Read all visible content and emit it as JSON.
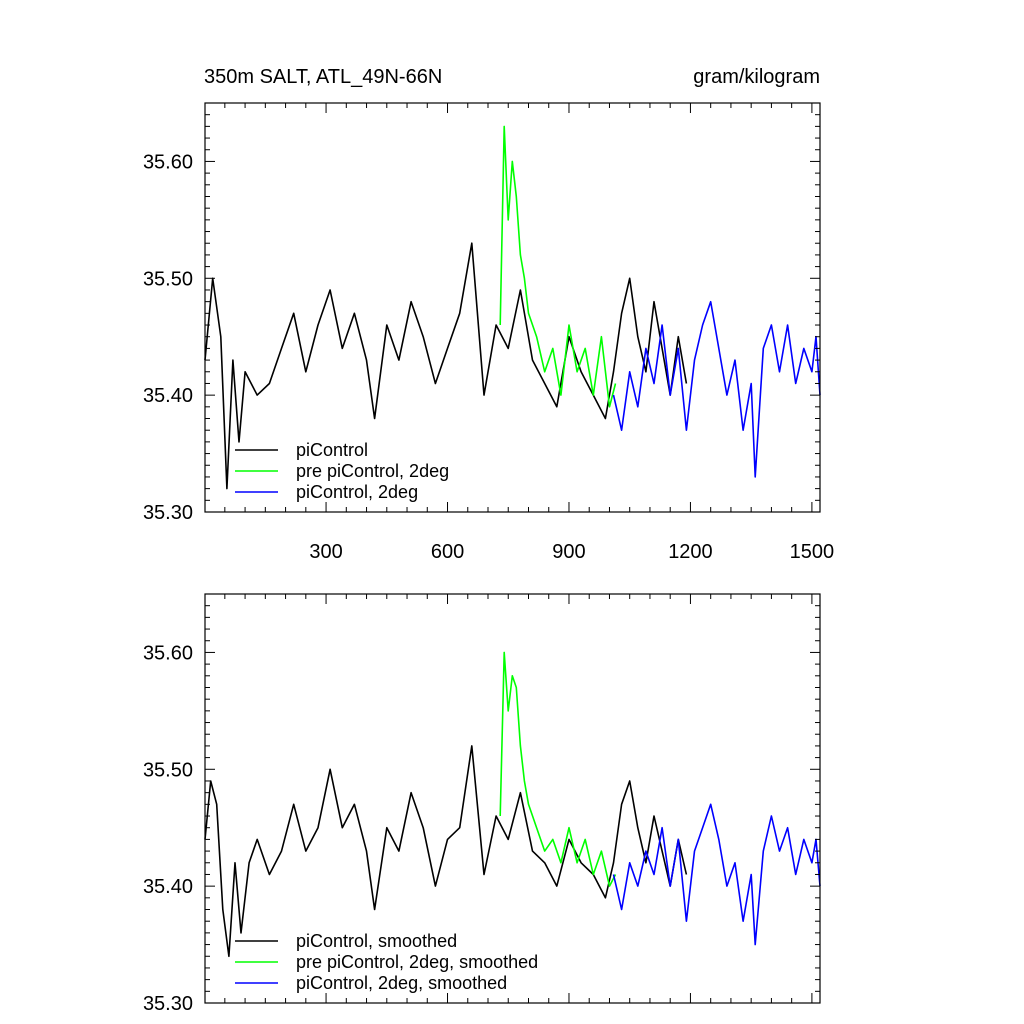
{
  "figure": {
    "title_left": "350m SALT, ATL_49N-66N",
    "title_right": "gram/kilogram"
  },
  "chart_data": [
    {
      "type": "line",
      "name": "raw",
      "xlim": [
        1,
        1520
      ],
      "ylim": [
        35.3,
        35.65
      ],
      "xticks": [
        300,
        600,
        900,
        1200,
        1500
      ],
      "xtick_labels": [
        "300",
        "600",
        "900",
        "1200",
        "1500"
      ],
      "yticks": [
        35.3,
        35.4,
        35.5,
        35.6
      ],
      "ytick_labels": [
        "35.30",
        "35.40",
        "35.50",
        "35.60"
      ],
      "series": [
        {
          "name": "piControl",
          "color": "#000000",
          "x": [
            1,
            20,
            40,
            55,
            70,
            85,
            100,
            130,
            160,
            190,
            220,
            250,
            280,
            310,
            340,
            370,
            400,
            420,
            450,
            480,
            510,
            540,
            570,
            600,
            630,
            660,
            690,
            720,
            750,
            780,
            810,
            840,
            870,
            900,
            930,
            960,
            990,
            1010,
            1030,
            1050,
            1070,
            1090,
            1110,
            1130,
            1150,
            1170,
            1190
          ],
          "values": [
            35.43,
            35.5,
            35.45,
            35.32,
            35.43,
            35.36,
            35.42,
            35.4,
            35.41,
            35.44,
            35.47,
            35.42,
            35.46,
            35.49,
            35.44,
            35.47,
            35.43,
            35.38,
            35.46,
            35.43,
            35.48,
            35.45,
            35.41,
            35.44,
            35.47,
            35.53,
            35.4,
            35.46,
            35.44,
            35.49,
            35.43,
            35.41,
            35.39,
            35.45,
            35.42,
            35.4,
            35.38,
            35.42,
            35.47,
            35.5,
            35.45,
            35.42,
            35.48,
            35.44,
            35.4,
            35.45,
            35.41
          ]
        },
        {
          "name": "pre piControl, 2deg",
          "color": "#00ff00",
          "x": [
            730,
            740,
            750,
            760,
            770,
            780,
            790,
            800,
            820,
            840,
            860,
            880,
            900,
            920,
            940,
            960,
            980,
            1000,
            1015
          ],
          "values": [
            35.46,
            35.63,
            35.55,
            35.6,
            35.57,
            35.52,
            35.5,
            35.47,
            35.45,
            35.42,
            35.44,
            35.4,
            35.46,
            35.42,
            35.44,
            35.4,
            35.45,
            35.39,
            35.41
          ]
        },
        {
          "name": "piControl, 2deg",
          "color": "#0000ff",
          "x": [
            1010,
            1030,
            1050,
            1070,
            1090,
            1110,
            1130,
            1150,
            1170,
            1190,
            1210,
            1230,
            1250,
            1270,
            1290,
            1310,
            1330,
            1350,
            1360,
            1380,
            1400,
            1420,
            1440,
            1460,
            1480,
            1500,
            1510,
            1520
          ],
          "values": [
            35.4,
            35.37,
            35.42,
            35.39,
            35.44,
            35.41,
            35.46,
            35.4,
            35.44,
            35.37,
            35.43,
            35.46,
            35.48,
            35.44,
            35.4,
            35.43,
            35.37,
            35.41,
            35.33,
            35.44,
            35.46,
            35.42,
            35.46,
            35.41,
            35.44,
            35.42,
            35.45,
            35.4
          ]
        }
      ],
      "legend": [
        "piControl",
        "pre piControl, 2deg",
        "piControl, 2deg"
      ],
      "legend_position": "bottom-left"
    },
    {
      "type": "line",
      "name": "smoothed",
      "xlim": [
        1,
        1520
      ],
      "ylim": [
        35.3,
        35.65
      ],
      "xticks": [
        300,
        600,
        900,
        1200,
        1500
      ],
      "xtick_labels": [],
      "yticks": [
        35.3,
        35.4,
        35.5,
        35.6
      ],
      "ytick_labels": [
        "35.30",
        "35.40",
        "35.50",
        "35.60"
      ],
      "series": [
        {
          "name": "piControl, smoothed",
          "color": "#000000",
          "x": [
            1,
            15,
            30,
            45,
            60,
            75,
            90,
            110,
            130,
            160,
            190,
            220,
            250,
            280,
            310,
            340,
            370,
            400,
            420,
            450,
            480,
            510,
            540,
            570,
            600,
            630,
            660,
            690,
            720,
            750,
            780,
            810,
            840,
            870,
            900,
            930,
            960,
            990,
            1010,
            1030,
            1050,
            1070,
            1090,
            1110,
            1130,
            1150,
            1170,
            1190
          ],
          "values": [
            35.44,
            35.49,
            35.47,
            35.38,
            35.34,
            35.42,
            35.36,
            35.42,
            35.44,
            35.41,
            35.43,
            35.47,
            35.43,
            35.45,
            35.5,
            35.45,
            35.47,
            35.43,
            35.38,
            35.45,
            35.43,
            35.48,
            35.45,
            35.4,
            35.44,
            35.45,
            35.52,
            35.41,
            35.46,
            35.44,
            35.48,
            35.43,
            35.42,
            35.4,
            35.44,
            35.42,
            35.41,
            35.39,
            35.42,
            35.47,
            35.49,
            35.45,
            35.42,
            35.46,
            35.43,
            35.4,
            35.44,
            35.41
          ]
        },
        {
          "name": "pre piControl, 2deg, smoothed",
          "color": "#00ff00",
          "x": [
            730,
            740,
            750,
            760,
            770,
            780,
            790,
            800,
            820,
            840,
            860,
            880,
            900,
            920,
            940,
            960,
            980,
            1000,
            1015
          ],
          "values": [
            35.46,
            35.6,
            35.55,
            35.58,
            35.57,
            35.52,
            35.49,
            35.47,
            35.45,
            35.43,
            35.44,
            35.42,
            35.45,
            35.42,
            35.44,
            35.41,
            35.43,
            35.4,
            35.41
          ]
        },
        {
          "name": "piControl, 2deg, smoothed",
          "color": "#0000ff",
          "x": [
            1010,
            1030,
            1050,
            1070,
            1090,
            1110,
            1130,
            1150,
            1170,
            1190,
            1210,
            1230,
            1250,
            1270,
            1290,
            1310,
            1330,
            1350,
            1360,
            1380,
            1400,
            1420,
            1440,
            1460,
            1480,
            1500,
            1510,
            1520
          ],
          "values": [
            35.41,
            35.38,
            35.42,
            35.4,
            35.43,
            35.41,
            35.45,
            35.4,
            35.44,
            35.37,
            35.43,
            35.45,
            35.47,
            35.44,
            35.4,
            35.42,
            35.37,
            35.41,
            35.35,
            35.43,
            35.46,
            35.43,
            35.45,
            35.41,
            35.44,
            35.42,
            35.44,
            35.4
          ]
        }
      ],
      "legend": [
        "piControl, smoothed",
        "pre piControl, 2deg, smoothed",
        "piControl, 2deg, smoothed"
      ],
      "legend_position": "bottom-left"
    }
  ]
}
